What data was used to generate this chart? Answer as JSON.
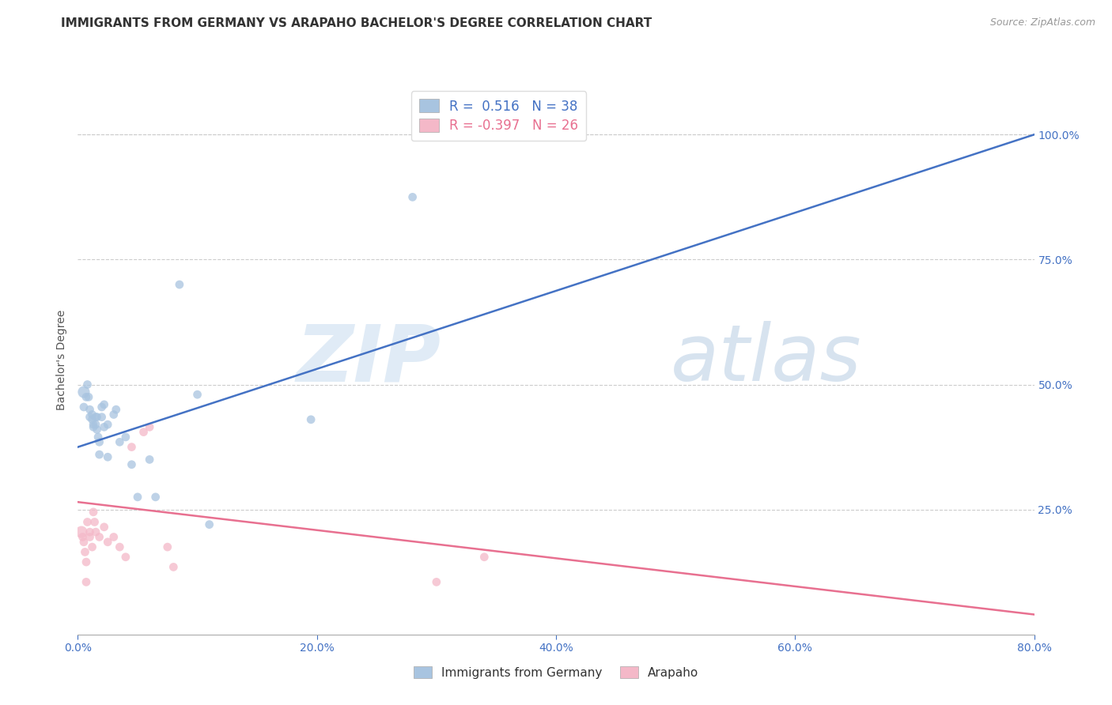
{
  "title": "IMMIGRANTS FROM GERMANY VS ARAPAHO BACHELOR'S DEGREE CORRELATION CHART",
  "source_text": "Source: ZipAtlas.com",
  "ylabel": "Bachelor's Degree",
  "xlabel_ticks": [
    "0.0%",
    "20.0%",
    "40.0%",
    "60.0%",
    "80.0%"
  ],
  "xlabel_tick_vals": [
    0.0,
    0.2,
    0.4,
    0.6,
    0.8
  ],
  "ylabel_ticks": [
    "100.0%",
    "75.0%",
    "50.0%",
    "25.0%"
  ],
  "ylabel_tick_vals": [
    1.0,
    0.75,
    0.5,
    0.25
  ],
  "blue_r": 0.516,
  "blue_n": 38,
  "pink_r": -0.397,
  "pink_n": 26,
  "blue_color": "#a8c4e0",
  "blue_line_color": "#4472c4",
  "pink_color": "#f4b8c8",
  "pink_line_color": "#e87090",
  "legend_label_blue": "Immigrants from Germany",
  "legend_label_pink": "Arapaho",
  "watermark_zip": "ZIP",
  "watermark_atlas": "atlas",
  "blue_scatter_x": [
    0.005,
    0.005,
    0.007,
    0.008,
    0.009,
    0.01,
    0.01,
    0.012,
    0.012,
    0.013,
    0.013,
    0.015,
    0.015,
    0.016,
    0.016,
    0.017,
    0.018,
    0.018,
    0.02,
    0.02,
    0.022,
    0.022,
    0.025,
    0.025,
    0.03,
    0.032,
    0.035,
    0.04,
    0.045,
    0.05,
    0.06,
    0.065,
    0.085,
    0.1,
    0.11,
    0.195,
    0.28,
    0.325
  ],
  "blue_scatter_y": [
    0.485,
    0.455,
    0.475,
    0.5,
    0.475,
    0.45,
    0.435,
    0.44,
    0.43,
    0.42,
    0.415,
    0.435,
    0.42,
    0.435,
    0.41,
    0.395,
    0.385,
    0.36,
    0.455,
    0.435,
    0.46,
    0.415,
    0.42,
    0.355,
    0.44,
    0.45,
    0.385,
    0.395,
    0.34,
    0.275,
    0.35,
    0.275,
    0.7,
    0.48,
    0.22,
    0.43,
    0.875,
    1.0
  ],
  "blue_scatter_size": [
    120,
    60,
    60,
    60,
    60,
    60,
    60,
    60,
    60,
    60,
    60,
    60,
    60,
    60,
    60,
    60,
    60,
    60,
    60,
    60,
    60,
    60,
    60,
    60,
    60,
    60,
    60,
    60,
    60,
    60,
    60,
    60,
    60,
    60,
    60,
    60,
    60,
    60
  ],
  "pink_scatter_x": [
    0.003,
    0.004,
    0.005,
    0.006,
    0.007,
    0.007,
    0.008,
    0.01,
    0.01,
    0.012,
    0.013,
    0.014,
    0.015,
    0.018,
    0.022,
    0.025,
    0.03,
    0.035,
    0.04,
    0.045,
    0.055,
    0.06,
    0.075,
    0.08,
    0.3,
    0.34
  ],
  "pink_scatter_y": [
    0.205,
    0.195,
    0.185,
    0.165,
    0.145,
    0.105,
    0.225,
    0.205,
    0.195,
    0.175,
    0.245,
    0.225,
    0.205,
    0.195,
    0.215,
    0.185,
    0.195,
    0.175,
    0.155,
    0.375,
    0.405,
    0.415,
    0.175,
    0.135,
    0.105,
    0.155
  ],
  "pink_scatter_size": [
    120,
    60,
    60,
    60,
    60,
    60,
    60,
    60,
    60,
    60,
    60,
    60,
    60,
    60,
    60,
    60,
    60,
    60,
    60,
    60,
    60,
    60,
    60,
    60,
    60,
    60
  ],
  "blue_line_x": [
    0.0,
    0.8
  ],
  "blue_line_y": [
    0.375,
    1.0
  ],
  "pink_line_x": [
    0.0,
    0.8
  ],
  "pink_line_y": [
    0.265,
    0.04
  ],
  "xlim": [
    0.0,
    0.8
  ],
  "ylim": [
    0.0,
    1.1
  ],
  "grid_color": "#cccccc",
  "title_fontsize": 11,
  "axis_fontsize": 10,
  "tick_fontsize": 10,
  "right_tick_color": "#4472c4"
}
